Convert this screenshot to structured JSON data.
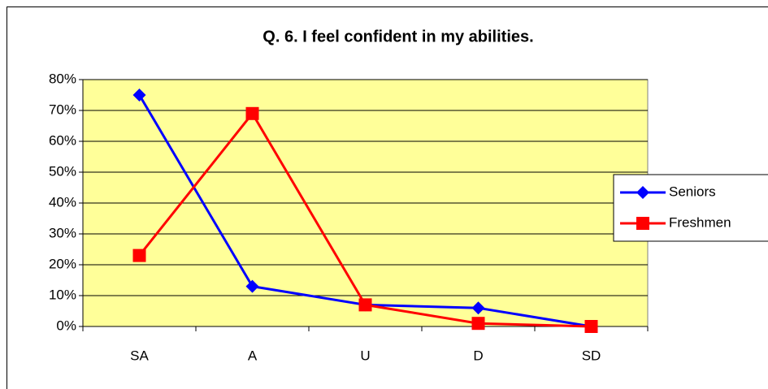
{
  "chart_data": {
    "type": "line",
    "title": "Q. 6. I feel confident in my abilities.",
    "categories": [
      "SA",
      "A",
      "U",
      "D",
      "SD"
    ],
    "series": [
      {
        "name": "Seniors",
        "color": "#0000ff",
        "marker": "diamond",
        "values": [
          75,
          13,
          7,
          6,
          0
        ]
      },
      {
        "name": "Freshmen",
        "color": "#ff0000",
        "marker": "square",
        "values": [
          23,
          69,
          7,
          1,
          0
        ]
      }
    ],
    "ylim": [
      0,
      80
    ],
    "yticks": [
      {
        "value": 0,
        "label": "0%"
      },
      {
        "value": 10,
        "label": "10%"
      },
      {
        "value": 20,
        "label": "20%"
      },
      {
        "value": 30,
        "label": "30%"
      },
      {
        "value": 40,
        "label": "40%"
      },
      {
        "value": 50,
        "label": "50%"
      },
      {
        "value": 60,
        "label": "60%"
      },
      {
        "value": 70,
        "label": "70%"
      },
      {
        "value": 80,
        "label": "80%"
      }
    ],
    "grid": true,
    "legend": "right",
    "plot_background": "#ffff99"
  }
}
